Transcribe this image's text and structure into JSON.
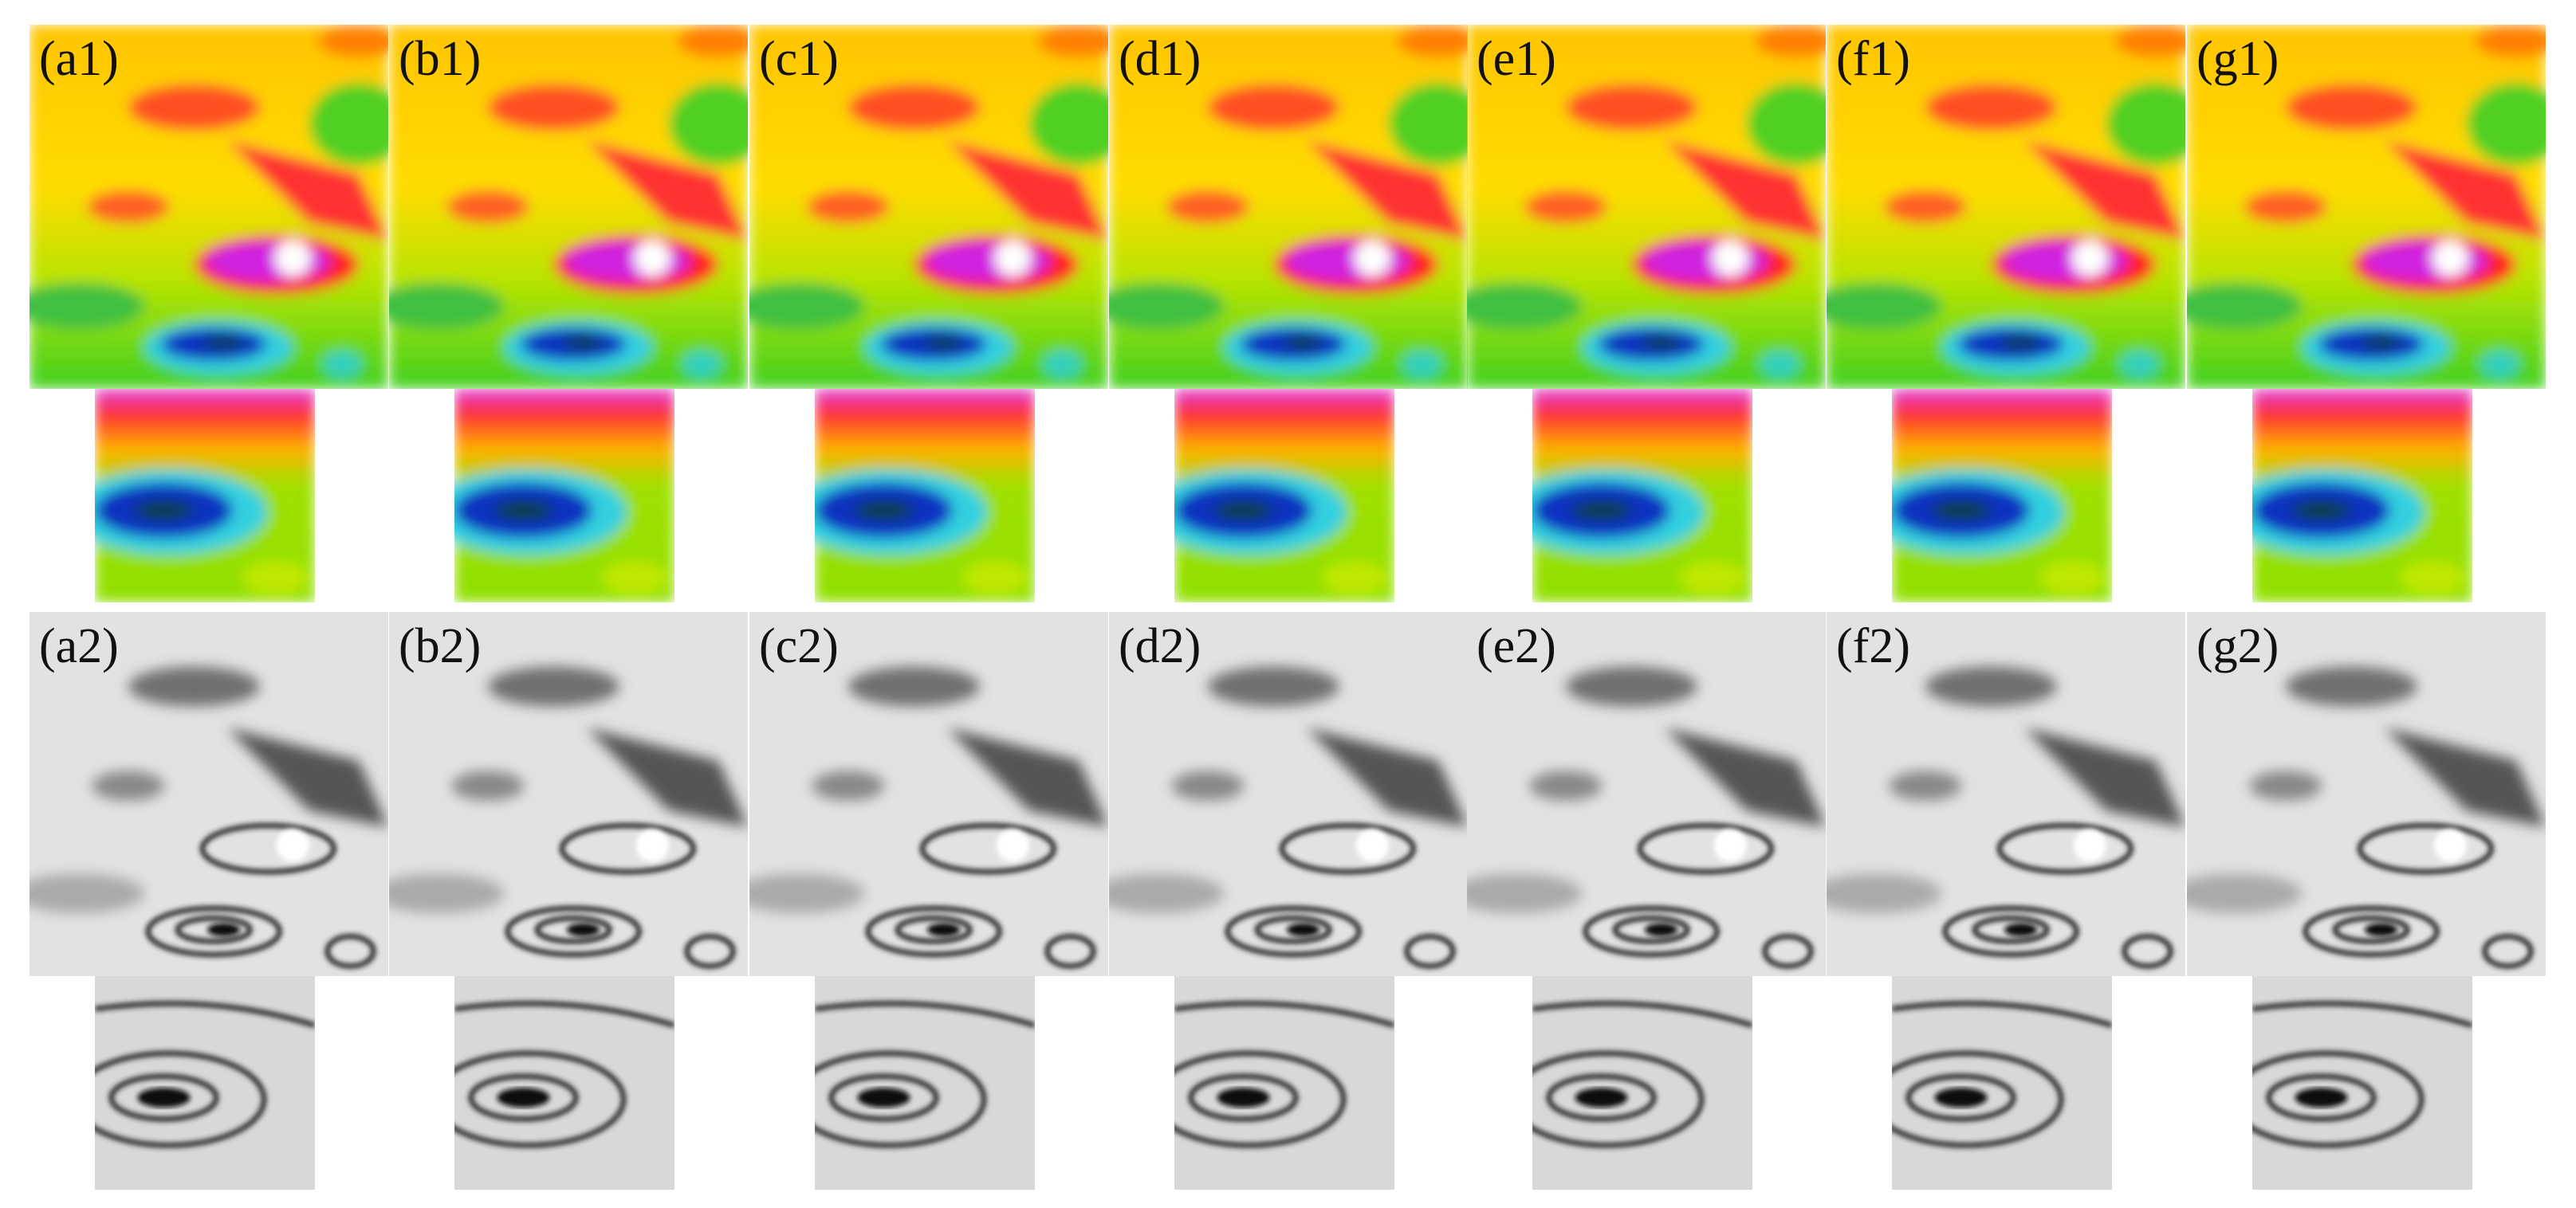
{
  "rows": [
    {
      "labels": [
        "(a1)",
        "(b1)",
        "(c1)",
        "(d1)",
        "(e1)",
        "(f1)",
        "(g1)"
      ]
    },
    {
      "labels": [
        "(a2)",
        "(b2)",
        "(c2)",
        "(d2)",
        "(e2)",
        "(f2)",
        "(g2)"
      ]
    }
  ]
}
